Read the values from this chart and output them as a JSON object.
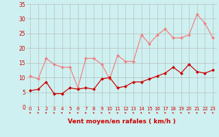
{
  "xlabel": "Vent moyen/en rafales ( km/h )",
  "background_color": "#cff0f0",
  "grid_color": "#b0b0b0",
  "xmin": -0.5,
  "xmax": 23.5,
  "ymin": 0,
  "ymax": 35,
  "yticks": [
    0,
    5,
    10,
    15,
    20,
    25,
    30,
    35
  ],
  "xticks": [
    0,
    1,
    2,
    3,
    4,
    5,
    6,
    7,
    8,
    9,
    10,
    11,
    12,
    13,
    14,
    15,
    16,
    17,
    18,
    19,
    20,
    21,
    22,
    23
  ],
  "rafales": [
    10.5,
    9.5,
    16.5,
    14.5,
    13.5,
    13.5,
    6.5,
    16.5,
    16.5,
    14.5,
    9.5,
    17.5,
    15.5,
    15.5,
    24.5,
    21.5,
    24.5,
    26.5,
    23.5,
    23.5,
    24.5,
    31.5,
    28.5,
    23.5
  ],
  "moyen": [
    5.5,
    6.0,
    8.5,
    4.5,
    4.5,
    6.5,
    6.0,
    6.5,
    6.0,
    9.5,
    10.0,
    6.5,
    7.0,
    8.5,
    8.5,
    9.5,
    10.5,
    11.5,
    13.5,
    11.5,
    14.5,
    12.0,
    11.5,
    12.5
  ],
  "color_rafales": "#f08080",
  "color_moyen": "#cc0000",
  "marker_size": 2.2,
  "linewidth": 0.9,
  "tick_color": "#cc0000",
  "label_color": "#cc0000",
  "axis_label_fontsize": 6.5,
  "tick_fontsize": 5.5
}
